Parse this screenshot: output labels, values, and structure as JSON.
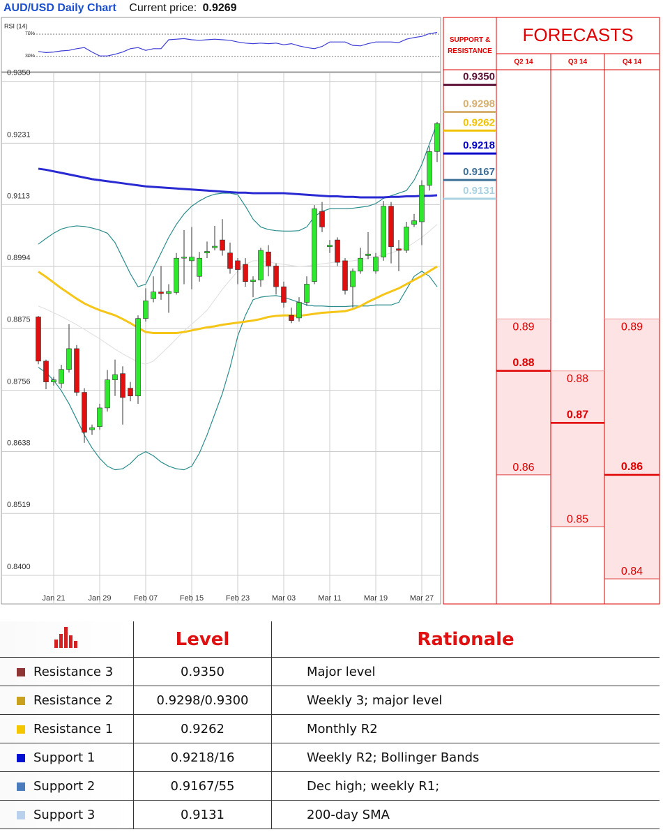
{
  "header": {
    "title": "AUD/USD Daily Chart",
    "price_label": "Current price:",
    "price": "0.9269"
  },
  "chart_data": [
    {
      "type": "line",
      "title": "RSI (14)",
      "color": "#3b3bd6",
      "grid": true,
      "ylim": [
        4,
        96
      ],
      "yticks": [
        {
          "value": 30,
          "label": "30%"
        },
        {
          "value": 70,
          "label": "70%"
        }
      ],
      "values": [
        39,
        37,
        38,
        40,
        41,
        44,
        46,
        38,
        31,
        31,
        34,
        38,
        44,
        46,
        41,
        44,
        44,
        60,
        61,
        62,
        60,
        59,
        60,
        61,
        60,
        59,
        56,
        54,
        53,
        54,
        53,
        54,
        51,
        53,
        49,
        46,
        44,
        48,
        56,
        56,
        56,
        50,
        49,
        53,
        56,
        56,
        56,
        55,
        61,
        64,
        66,
        71,
        73
      ]
    },
    {
      "type": "candlestick",
      "grid": true,
      "up_color": "#2ee82e",
      "down_color": "#e01010",
      "ylim": [
        0.8345,
        0.9367
      ],
      "yticks": [
        {
          "value": 0.935,
          "label": "0.9350"
        },
        0.9231,
        0.9113,
        0.8994,
        0.8875,
        0.8756,
        0.8638,
        0.8519,
        {
          "value": 0.84,
          "label": "0.8400"
        }
      ],
      "categories": [
        null,
        null,
        "Jan 21",
        null,
        null,
        null,
        null,
        null,
        "Jan 29",
        null,
        null,
        null,
        null,
        null,
        "Feb 07",
        null,
        null,
        null,
        null,
        null,
        "Feb 15",
        null,
        null,
        null,
        null,
        null,
        "Feb 23",
        null,
        null,
        null,
        null,
        null,
        "Mar 03",
        null,
        null,
        null,
        null,
        null,
        "Mar 11",
        null,
        null,
        null,
        null,
        null,
        "Mar 19",
        null,
        null,
        null,
        null,
        null,
        "Mar 27",
        null,
        null
      ],
      "open": [
        0.8897,
        0.8812,
        0.8772,
        0.8769,
        0.8796,
        0.8836,
        0.8752,
        0.868,
        0.8686,
        0.8722,
        0.8776,
        0.8788,
        0.876,
        0.8745,
        0.8894,
        0.8932,
        0.8945,
        0.8942,
        0.8944,
        0.901,
        0.9005,
        0.8975,
        0.902,
        0.903,
        0.9045,
        0.902,
        0.9005,
        0.8998,
        0.8965,
        0.8968,
        0.9022,
        0.8995,
        0.8955,
        0.89,
        0.8895,
        0.8925,
        0.8965,
        0.91,
        0.9032,
        0.9045,
        0.9005,
        0.8955,
        0.8985,
        0.9015,
        0.8985,
        0.9012,
        0.911,
        0.9028,
        0.9025,
        0.9075,
        0.908,
        0.915,
        0.9215
      ],
      "high": [
        0.8899,
        0.8815,
        0.8782,
        0.8805,
        0.8883,
        0.8843,
        0.876,
        0.869,
        0.873,
        0.8795,
        0.8815,
        0.8802,
        0.8772,
        0.89,
        0.8952,
        0.8975,
        0.8995,
        0.896,
        0.902,
        0.9064,
        0.907,
        0.9022,
        0.9042,
        0.9072,
        0.9085,
        0.904,
        0.901,
        0.901,
        0.8975,
        0.903,
        0.9035,
        0.9,
        0.8965,
        0.8915,
        0.8935,
        0.8975,
        0.9112,
        0.9118,
        0.9045,
        0.905,
        0.901,
        0.899,
        0.903,
        0.906,
        0.902,
        0.912,
        0.9118,
        0.9045,
        0.908,
        0.9095,
        0.916,
        0.9225,
        0.9272
      ],
      "low": [
        0.8806,
        0.8758,
        0.8765,
        0.876,
        0.879,
        0.8745,
        0.8655,
        0.867,
        0.868,
        0.8715,
        0.8745,
        0.869,
        0.8735,
        0.873,
        0.8888,
        0.8925,
        0.893,
        0.8905,
        0.894,
        0.896,
        0.895,
        0.8965,
        0.901,
        0.9025,
        0.9015,
        0.898,
        0.896,
        0.8955,
        0.8935,
        0.8955,
        0.8975,
        0.894,
        0.8915,
        0.8885,
        0.8888,
        0.8918,
        0.896,
        0.906,
        0.902,
        0.8995,
        0.894,
        0.8915,
        0.898,
        0.9008,
        0.898,
        0.9005,
        0.9,
        0.8985,
        0.902,
        0.907,
        0.9035,
        0.914,
        0.9195
      ],
      "close": [
        0.8812,
        0.8772,
        0.8776,
        0.8796,
        0.8836,
        0.8752,
        0.8675,
        0.8684,
        0.8722,
        0.8776,
        0.8786,
        0.8742,
        0.8745,
        0.8894,
        0.8928,
        0.8945,
        0.8942,
        0.8946,
        0.901,
        0.9012,
        0.9012,
        0.901,
        0.9023,
        0.9033,
        0.9025,
        0.899,
        0.8988,
        0.8965,
        0.8968,
        0.9025,
        0.8995,
        0.8955,
        0.8925,
        0.889,
        0.8925,
        0.896,
        0.9105,
        0.907,
        0.9035,
        0.9002,
        0.8948,
        0.8985,
        0.901,
        0.9018,
        0.9012,
        0.911,
        0.9032,
        0.9025,
        0.907,
        0.9082,
        0.915,
        0.9215,
        0.9269
      ],
      "series": [
        {
          "color": "#e2e2e2",
          "values": [
            0.8918,
            0.8912,
            0.8905,
            0.8898,
            0.889,
            0.8882,
            0.8873,
            0.8864,
            0.8855,
            0.8845,
            0.8835,
            0.8826,
            0.8818,
            0.881,
            0.8806,
            0.8812,
            0.8826,
            0.884,
            0.8855,
            0.887,
            0.8883,
            0.8896,
            0.891,
            0.893,
            0.895,
            0.8968,
            0.8985,
            0.8998,
            0.9005,
            0.9005,
            0.9003,
            0.9,
            0.8998,
            0.8996,
            0.8994,
            0.8995,
            0.8997,
            0.8999,
            0.9001,
            0.9003,
            0.9003,
            0.9005,
            0.9007,
            0.901,
            0.9013,
            0.9016,
            0.902,
            0.9025,
            0.903,
            0.904,
            0.905,
            0.9062,
            0.9075
          ]
        },
        {
          "color": "#2b8c8c",
          "values": [
            0.9037,
            0.9048,
            0.9058,
            0.9066,
            0.907,
            0.9072,
            0.9071,
            0.9068,
            0.9064,
            0.9058,
            0.904,
            0.901,
            0.898,
            0.8955,
            0.896,
            0.899,
            0.902,
            0.905,
            0.9075,
            0.9095,
            0.911,
            0.912,
            0.9128,
            0.9133,
            0.9135,
            0.9135,
            0.9132,
            0.911,
            0.9085,
            0.907,
            0.9065,
            0.9063,
            0.9062,
            0.9062,
            0.9063,
            0.907,
            0.909,
            0.91,
            0.9105,
            0.9105,
            0.9105,
            0.9106,
            0.9108,
            0.911,
            0.9115,
            0.9125,
            0.913,
            0.9135,
            0.914,
            0.916,
            0.919,
            0.923,
            0.927
          ]
        },
        {
          "color": "#2b8c8c",
          "values": [
            0.88,
            0.879,
            0.8775,
            0.8755,
            0.873,
            0.87,
            0.867,
            0.8645,
            0.8625,
            0.861,
            0.8603,
            0.8605,
            0.8615,
            0.863,
            0.8638,
            0.863,
            0.8618,
            0.861,
            0.8605,
            0.8603,
            0.861,
            0.8635,
            0.867,
            0.871,
            0.875,
            0.88,
            0.886,
            0.89,
            0.893,
            0.8935,
            0.8937,
            0.8938,
            0.8935,
            0.893,
            0.8925,
            0.892,
            0.8918,
            0.8918,
            0.8917,
            0.8917,
            0.8917,
            0.8918,
            0.8918,
            0.8918,
            0.892,
            0.892,
            0.892,
            0.8925,
            0.895,
            0.8975,
            0.8985,
            0.8975,
            0.8955
          ]
        },
        {
          "color": "#f5c518",
          "values": [
            0.8984,
            0.8974,
            0.8963,
            0.8952,
            0.8942,
            0.8932,
            0.8923,
            0.8916,
            0.891,
            0.8905,
            0.89,
            0.8893,
            0.8885,
            0.8876,
            0.8868,
            0.8866,
            0.8866,
            0.8866,
            0.8866,
            0.8868,
            0.8871,
            0.8874,
            0.8877,
            0.8879,
            0.8882,
            0.8884,
            0.8886,
            0.8888,
            0.889,
            0.8893,
            0.8897,
            0.8899,
            0.89,
            0.89,
            0.8899,
            0.8901,
            0.8903,
            0.8905,
            0.8906,
            0.8907,
            0.8908,
            0.8912,
            0.8918,
            0.8926,
            0.8933,
            0.894,
            0.8946,
            0.8952,
            0.896,
            0.8968,
            0.8976,
            0.8985,
            0.8994
          ]
        },
        {
          "color": "#2a2ad2",
          "values": [
            0.9182,
            0.918,
            0.9177,
            0.9174,
            0.9171,
            0.9168,
            0.9165,
            0.9162,
            0.916,
            0.9158,
            0.9156,
            0.9154,
            0.9152,
            0.915,
            0.9148,
            0.9147,
            0.9146,
            0.9145,
            0.9144,
            0.9143,
            0.9142,
            0.9141,
            0.914,
            0.9139,
            0.9138,
            0.9137,
            0.9136,
            0.9136,
            0.9135,
            0.9135,
            0.9135,
            0.9135,
            0.9135,
            0.9134,
            0.9133,
            0.9132,
            0.9131,
            0.913,
            0.9129,
            0.9129,
            0.9128,
            0.9128,
            0.9127,
            0.9127,
            0.9127,
            0.9127,
            0.9128,
            0.9128,
            0.9129,
            0.9129,
            0.913,
            0.913,
            0.9131
          ]
        }
      ]
    }
  ],
  "support_resistance": {
    "title": "SUPPORT & RESISTANCE",
    "levels": [
      {
        "value": 0.935,
        "label": "0.9350",
        "color": "#5c1035"
      },
      {
        "value": 0.9298,
        "color": "#d6b070"
      },
      {
        "value": 0.9262,
        "color": "#f2c200"
      },
      {
        "value": 0.9218,
        "color": "#0000c8"
      },
      {
        "value": 0.9167,
        "color": "#3d6f98"
      },
      {
        "value": 0.9131,
        "color": "#a9d2e2"
      }
    ]
  },
  "forecasts": {
    "title": "FORECASTS",
    "quarters": [
      {
        "label": "Q2 14",
        "high": 0.89,
        "mid": 0.88,
        "low": 0.86
      },
      {
        "label": "Q3 14",
        "high": 0.88,
        "mid": 0.87,
        "low": 0.85
      },
      {
        "label": "Q4 14",
        "high": 0.89,
        "mid": 0.86,
        "low": 0.84
      }
    ]
  },
  "table": {
    "headers": [
      "Level",
      "Rationale"
    ],
    "rows": [
      {
        "name": "Resistance 3",
        "color": "#8e3636",
        "level": "0.9350",
        "rationale": "Major level"
      },
      {
        "name": "Resistance 2",
        "color": "#c9a11c",
        "level": "0.9298/0.9300",
        "rationale": "Weekly 3; major level"
      },
      {
        "name": "Resistance 1",
        "color": "#f3c600",
        "level": "0.9262",
        "rationale": "Monthly R2"
      },
      {
        "name": "Support 1",
        "color": "#0010d0",
        "level": "0.9218/16",
        "rationale": "Weekly R2; Bollinger Bands"
      },
      {
        "name": "Support 2",
        "color": "#4a7bbd",
        "level": "0.9167/55",
        "rationale": "Dec high; weekly R1;"
      },
      {
        "name": "Support 3",
        "color": "#b9d1ec",
        "level": "0.9131",
        "rationale": "200-day SMA"
      }
    ]
  }
}
